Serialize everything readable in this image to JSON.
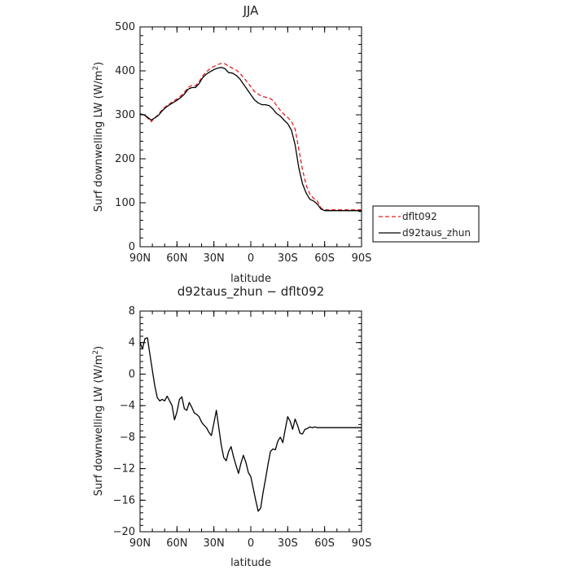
{
  "chart_data": [
    {
      "type": "line",
      "title": "JJA",
      "xlabel": "latitude",
      "ylabel": "Surf downwelling LW (W/m",
      "ylabel_sup": "2",
      "ylabel_close": ")",
      "xlim": [
        90,
        -90
      ],
      "ylim": [
        0,
        500
      ],
      "x_ticks": [
        90,
        60,
        30,
        0,
        -30,
        -60,
        -90
      ],
      "x_tick_labels": [
        "90N",
        "60N",
        "30N",
        "0",
        "30S",
        "60S",
        "90S"
      ],
      "y_ticks": [
        0,
        100,
        200,
        300,
        400,
        500
      ],
      "y_tick_labels": [
        "0",
        "100",
        "200",
        "300",
        "400",
        "500"
      ],
      "legend": "outside-right",
      "x": [
        90,
        87,
        84,
        81,
        78,
        75,
        72,
        69,
        66,
        63,
        60,
        57,
        54,
        51,
        48,
        45,
        42,
        39,
        36,
        33,
        30,
        27,
        24,
        21,
        18,
        15,
        12,
        9,
        6,
        3,
        0,
        -3,
        -6,
        -9,
        -12,
        -15,
        -18,
        -21,
        -24,
        -27,
        -30,
        -33,
        -36,
        -39,
        -42,
        -45,
        -48,
        -51,
        -54,
        -57,
        -60,
        -63,
        -66,
        -69,
        -72,
        -75,
        -78,
        -81,
        -84,
        -87,
        -90
      ],
      "series": [
        {
          "name": "dflt092",
          "color": "#e02020",
          "dash": true,
          "values": [
            302,
            300,
            293,
            284,
            293,
            301,
            312,
            319,
            325,
            331,
            336,
            343,
            351,
            362,
            367,
            366,
            375,
            389,
            398,
            405,
            410,
            414,
            417,
            416,
            411,
            406,
            402,
            395,
            385,
            375,
            364,
            353,
            347,
            342,
            340,
            338,
            333,
            321,
            310,
            301,
            294,
            285,
            268,
            222,
            175,
            140,
            120,
            110,
            104,
            88,
            84,
            84,
            84,
            84,
            84,
            84,
            84,
            84,
            84,
            84,
            84
          ]
        },
        {
          "name": "d92taus_zhun",
          "color": "#000000",
          "dash": false,
          "values": [
            302,
            300,
            295,
            288,
            293,
            299,
            309,
            317,
            323,
            328,
            333,
            339,
            347,
            358,
            362,
            362,
            371,
            385,
            393,
            398,
            403,
            406,
            408,
            405,
            396,
            395,
            390,
            382,
            370,
            358,
            346,
            334,
            327,
            323,
            323,
            321,
            313,
            303,
            297,
            288,
            280,
            265,
            232,
            180,
            143,
            122,
            108,
            104,
            97,
            86,
            82,
            82,
            82,
            82,
            82,
            82,
            82,
            82,
            82,
            82,
            82
          ]
        }
      ]
    },
    {
      "type": "line",
      "title": "d92taus_zhun − dflt092",
      "xlabel": "latitude",
      "ylabel": "Surf downwelling LW (W/m",
      "ylabel_sup": "2",
      "ylabel_close": ")",
      "xlim": [
        90,
        -90
      ],
      "ylim": [
        -20,
        8
      ],
      "x_ticks": [
        90,
        60,
        30,
        0,
        -30,
        -60,
        -90
      ],
      "x_tick_labels": [
        "90N",
        "60N",
        "30N",
        "0",
        "30S",
        "60S",
        "90S"
      ],
      "y_ticks": [
        -20,
        -16,
        -12,
        -8,
        -4,
        0,
        4,
        8
      ],
      "y_tick_labels": [
        "−20",
        "−16",
        "−12",
        "−8",
        "−4",
        "0",
        "4",
        "8"
      ],
      "x": [
        90,
        88,
        86,
        84,
        82,
        80,
        78,
        76,
        74,
        72,
        70,
        68,
        66,
        64,
        62,
        60,
        58,
        56,
        54,
        52,
        50,
        48,
        46,
        44,
        42,
        40,
        38,
        36,
        34,
        32,
        30,
        28,
        26,
        24,
        22,
        20,
        18,
        16,
        14,
        12,
        10,
        8,
        6,
        4,
        2,
        0,
        -2,
        -4,
        -6,
        -8,
        -10,
        -12,
        -14,
        -16,
        -18,
        -20,
        -22,
        -24,
        -26,
        -28,
        -30,
        -32,
        -34,
        -36,
        -38,
        -40,
        -42,
        -44,
        -46,
        -48,
        -50,
        -52,
        -54,
        -56,
        -58,
        -60,
        -62,
        -64,
        -66,
        -68,
        -70,
        -72,
        -74,
        -76,
        -78,
        -80,
        -82,
        -84,
        -86,
        -88,
        -90
      ],
      "series": [
        {
          "name": "d92taus_zhun − dflt092",
          "color": "#000000",
          "dash": false,
          "values": [
            4.0,
            3.2,
            4.5,
            4.6,
            2.5,
            0.5,
            -1.5,
            -3.0,
            -3.4,
            -3.2,
            -3.4,
            -2.8,
            -3.4,
            -4.0,
            -5.8,
            -4.8,
            -3.2,
            -2.9,
            -4.4,
            -4.6,
            -3.6,
            -4.2,
            -4.9,
            -5.1,
            -5.4,
            -6.1,
            -6.5,
            -6.8,
            -7.4,
            -7.8,
            -6.2,
            -4.6,
            -6.8,
            -9.0,
            -10.6,
            -11.0,
            -9.8,
            -9.2,
            -10.5,
            -11.6,
            -12.6,
            -11.3,
            -10.3,
            -11.2,
            -12.5,
            -13.0,
            -14.5,
            -16.0,
            -17.4,
            -17.0,
            -15.0,
            -13.3,
            -11.4,
            -9.8,
            -9.5,
            -9.6,
            -8.5,
            -8.0,
            -8.7,
            -7.0,
            -5.4,
            -6.0,
            -7.0,
            -5.7,
            -6.5,
            -7.5,
            -7.6,
            -7.0,
            -6.9,
            -6.7,
            -6.8,
            -6.7,
            -6.8,
            -6.8,
            -6.8,
            -6.8,
            -6.8,
            -6.8,
            -6.8,
            -6.8,
            -6.8,
            -6.8,
            -6.8,
            -6.8,
            -6.8,
            -6.8,
            -6.8,
            -6.8,
            -6.8,
            -6.8,
            -6.8
          ]
        }
      ]
    }
  ]
}
